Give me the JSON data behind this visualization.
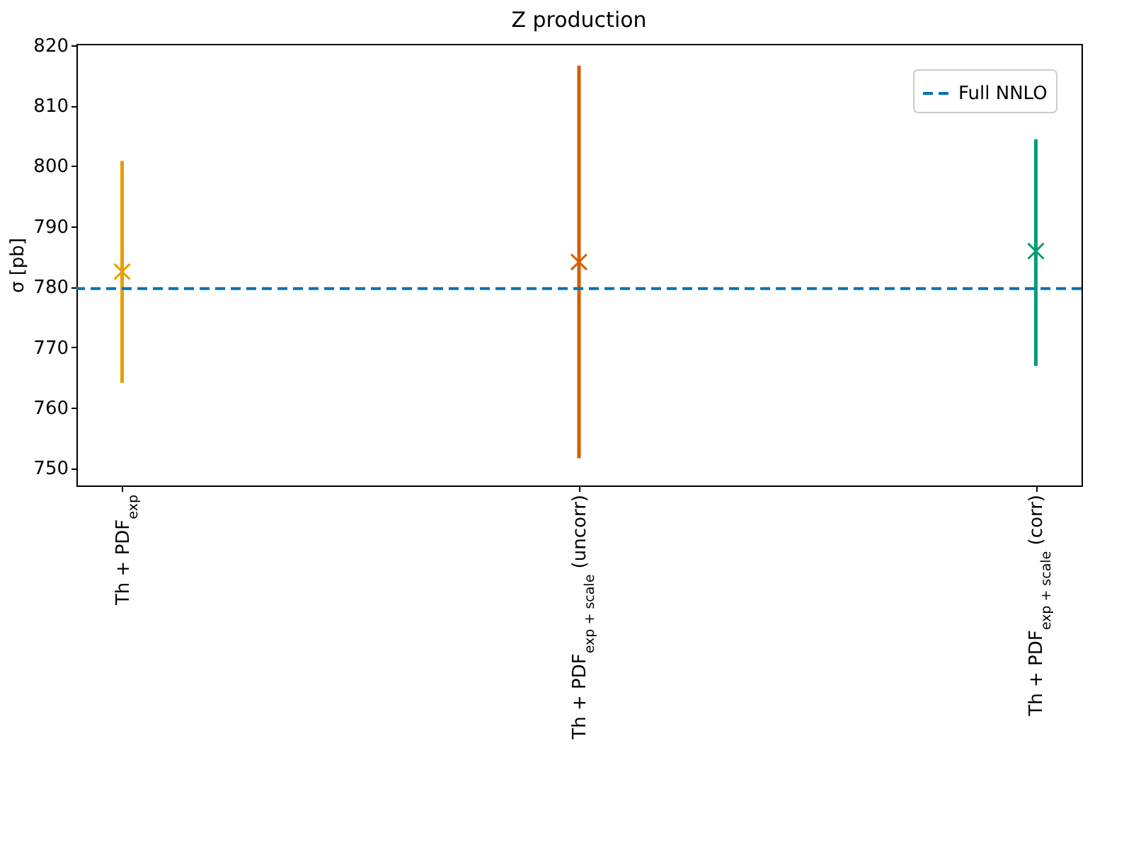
{
  "chart_data": {
    "type": "scatter",
    "title": "Z production",
    "ylabel": "σ [pb]",
    "categories": [
      "Th + PDF$_{exp}$",
      "Th + PDF$_{exp + scale}$ (uncorr)",
      "Th + PDF$_{exp + scale}$ (corr)"
    ],
    "values": [
      782.5,
      784.1,
      785.9
    ],
    "errors": [
      [
        764.1,
        800.8
      ],
      [
        751.6,
        816.6
      ],
      [
        766.9,
        804.4
      ]
    ],
    "colors": [
      "#e69f00",
      "#d55e00",
      "#009e73"
    ],
    "marker": "cross",
    "ylim": [
      747.1,
      820.2
    ],
    "yticks": [
      750,
      760,
      770,
      780,
      790,
      800,
      810,
      820
    ],
    "ref_lines": [
      {
        "axis": "y",
        "value": 779.7,
        "label": "Full NNLO",
        "color": "#0072b2",
        "line_style": "dashed"
      }
    ],
    "legend": "top right",
    "grid": false
  }
}
